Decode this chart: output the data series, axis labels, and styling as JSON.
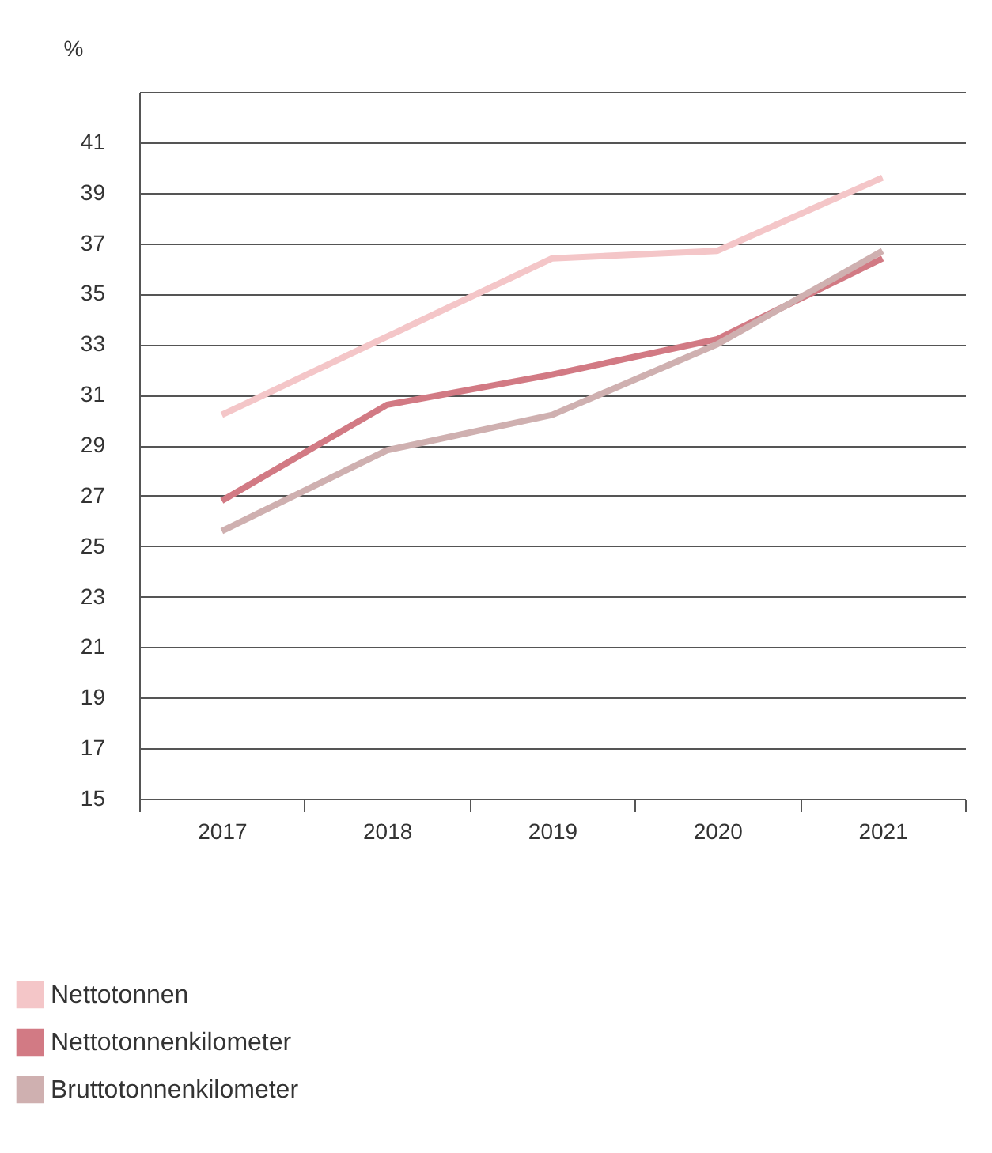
{
  "chart_data": {
    "type": "line",
    "ylabel": "%",
    "categories": [
      "2017",
      "2018",
      "2019",
      "2020",
      "2021"
    ],
    "series": [
      {
        "name": "Nettotonnen",
        "color": "#f4c6c8",
        "values": [
          30.2,
          33.3,
          36.4,
          36.7,
          39.6
        ]
      },
      {
        "name": "Nettotonnenkilometer",
        "color": "#d27a84",
        "values": [
          26.8,
          30.6,
          31.8,
          33.2,
          36.4
        ]
      },
      {
        "name": "Bruttotonnenkilometer",
        "color": "#cfb0b0",
        "values": [
          25.6,
          28.8,
          30.2,
          33.0,
          36.7
        ]
      }
    ],
    "ylim": [
      15,
      43
    ],
    "yticks": [
      15,
      17,
      19,
      21,
      23,
      25,
      27,
      29,
      31,
      33,
      35,
      37,
      39,
      41,
      {
        "value": 43,
        "label": null
      }
    ],
    "grid": "y",
    "legend": "bottom left",
    "line_style": "solid",
    "marker": "none"
  }
}
